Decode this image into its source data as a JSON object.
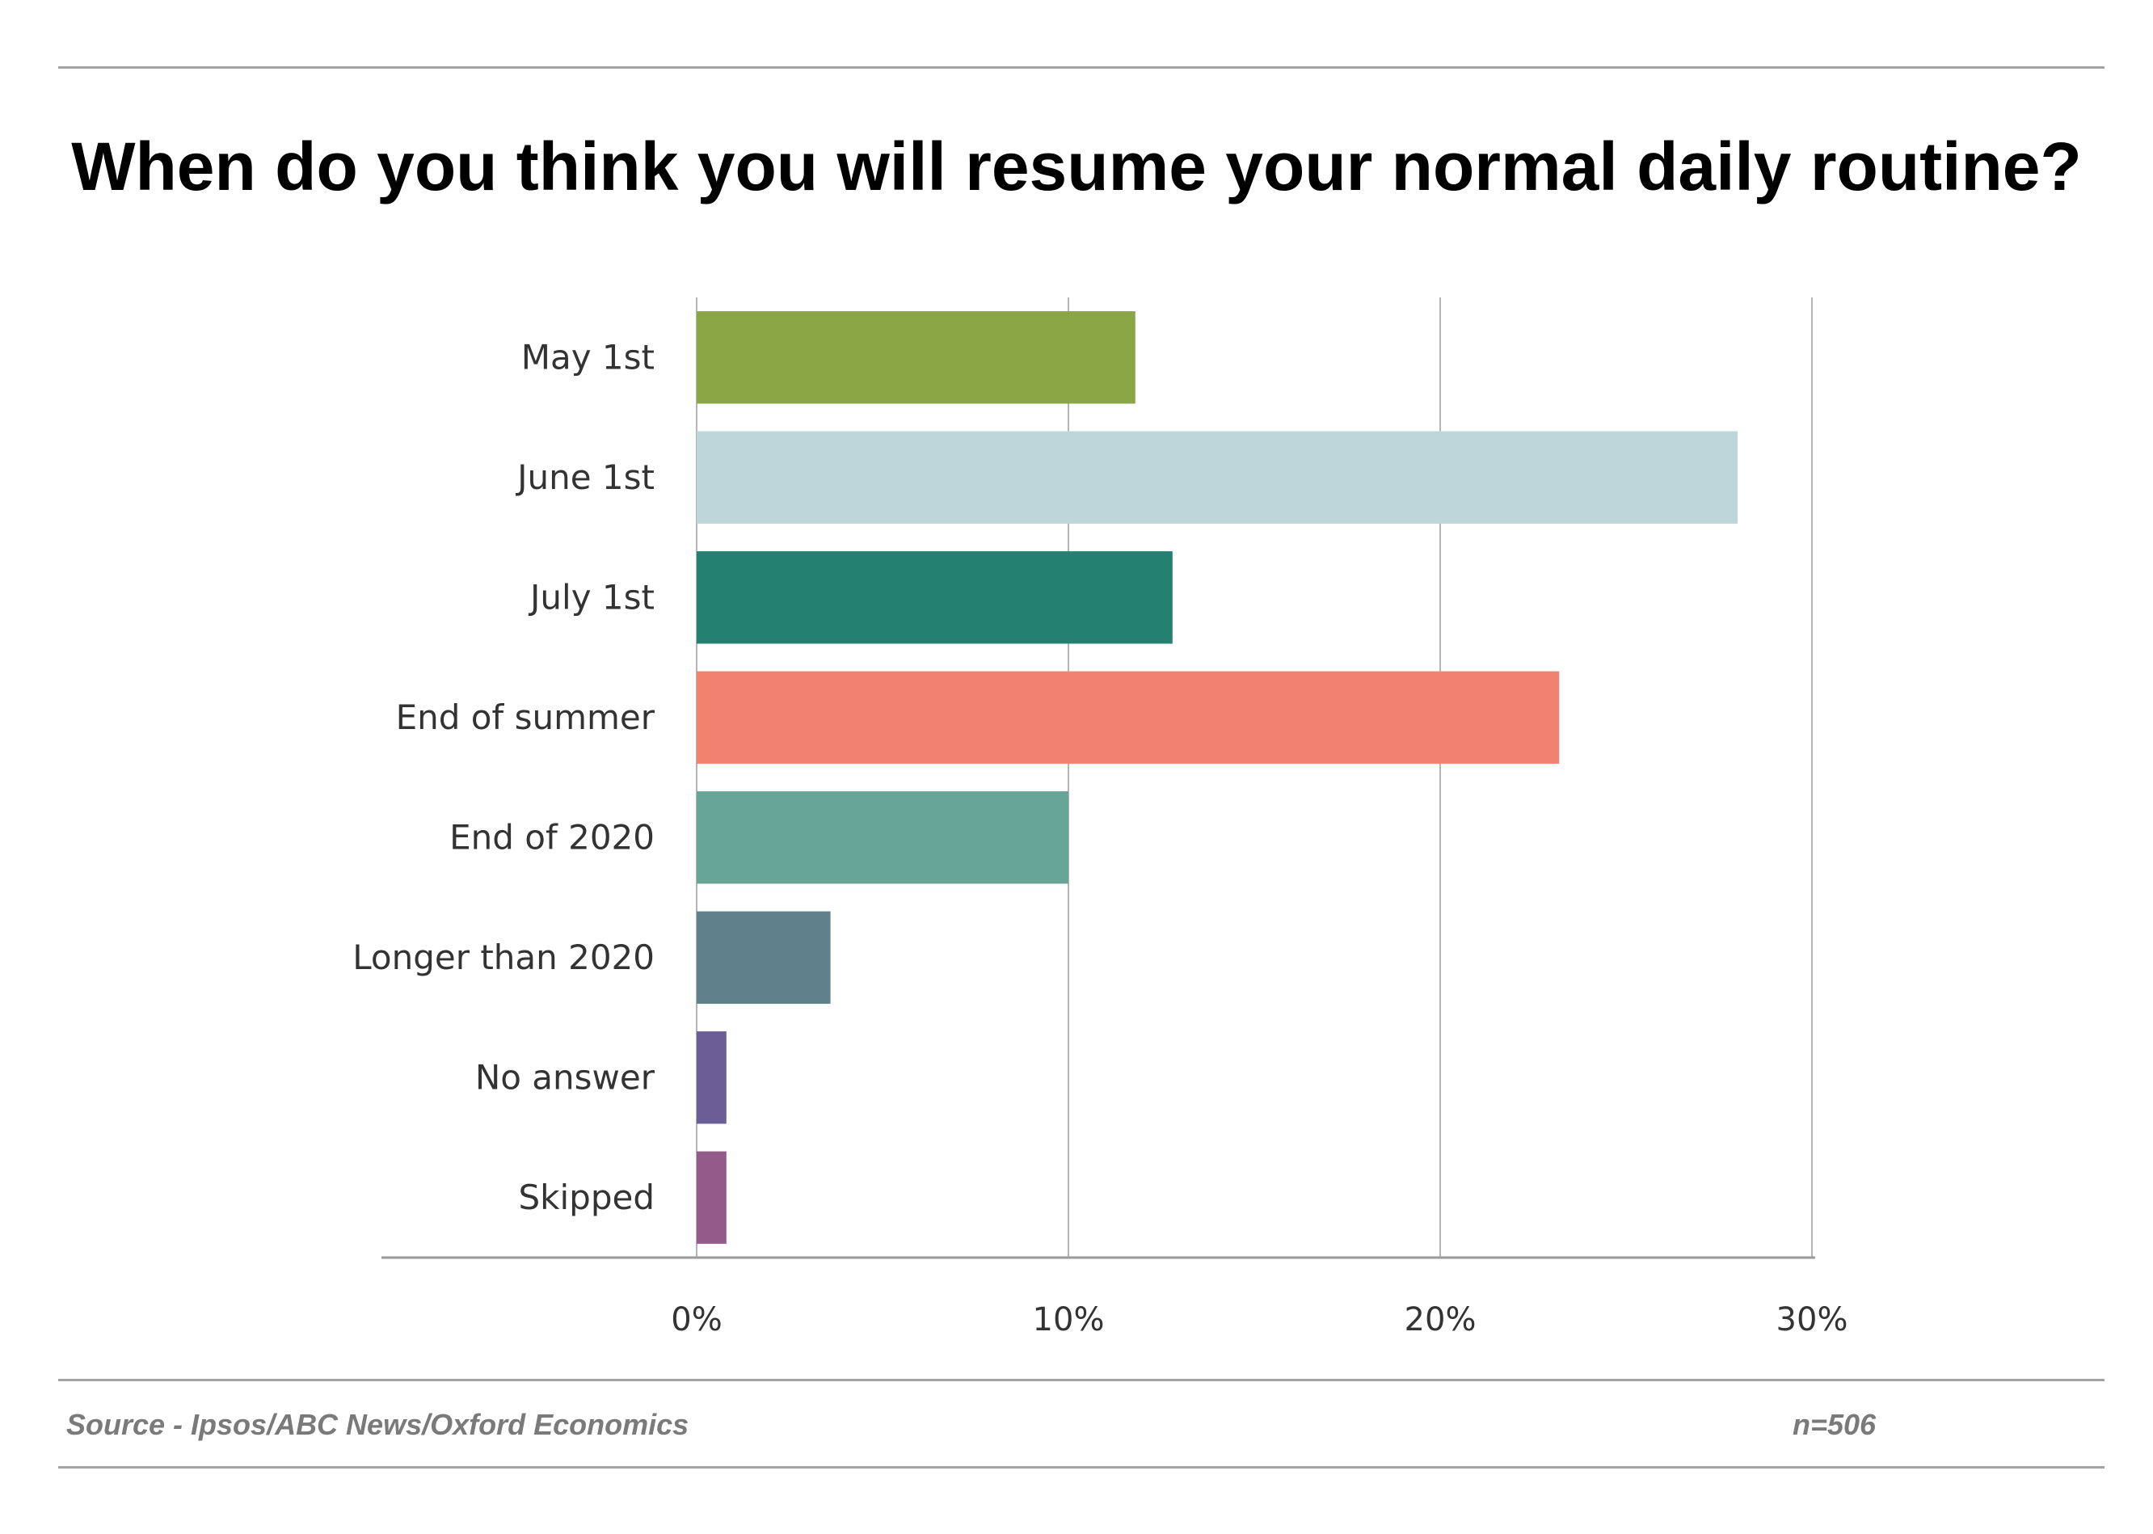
{
  "chart_data": {
    "type": "bar",
    "orientation": "horizontal",
    "title": "When do you think you will resume your normal daily routine?",
    "categories": [
      "May 1st",
      "June 1st",
      "July 1st",
      "End of summer",
      "End of 2020",
      "Longer than 2020",
      "No answer",
      "Skipped"
    ],
    "values": [
      11.8,
      28.0,
      12.8,
      23.2,
      10.0,
      3.6,
      0.8,
      0.8
    ],
    "colors": [
      "#8aa645",
      "#bcd6da",
      "#248071",
      "#f0826f",
      "#68a599",
      "#5e818b",
      "#6b5e96",
      "#945b8a"
    ],
    "xlim": [
      0,
      30
    ],
    "ticks": [
      0,
      10,
      20,
      30
    ],
    "tick_labels": [
      "0%",
      "10%",
      "20%",
      "30%"
    ],
    "grid": true,
    "legend": "none"
  },
  "footer": {
    "source": "Source - Ipsos/ABC News/Oxford Economics",
    "sample_size": "n=506"
  }
}
